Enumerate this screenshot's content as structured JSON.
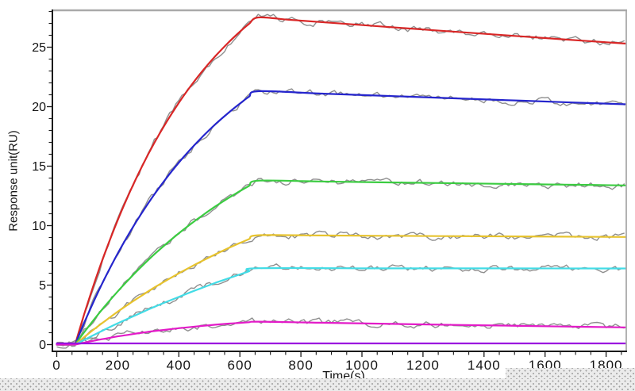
{
  "page": {
    "background_color": "#ffffff",
    "bottom_texture": "light-gray dotted desktop pattern partially covering x-axis labels"
  },
  "chart_data": {
    "type": "line",
    "title": "",
    "xlabel": "Time(s)",
    "ylabel": "Response unit(RU)",
    "xlim": [
      -14,
      1867
    ],
    "ylim": [
      -0.6,
      28.1
    ],
    "x_ticks": [
      0,
      200,
      400,
      600,
      800,
      1000,
      1200,
      1400,
      1600,
      1800
    ],
    "x_tick_labels": [
      "0",
      "200",
      "400",
      "600",
      "800",
      "1000",
      "1200",
      "1400",
      "1600",
      "1800"
    ],
    "x_minor_step": 50,
    "y_ticks": [
      0,
      5,
      10,
      15,
      20,
      25
    ],
    "y_tick_labels": [
      "0",
      "5",
      "10",
      "15",
      "20",
      "25"
    ],
    "y_minor_step": 1,
    "grid": false,
    "legend": "none",
    "axis_color": "#1a1a1a",
    "frame_color": "#a9a9a9",
    "noise_color": "#8f8f8f",
    "association_start_s": 60,
    "association_end_s": 660,
    "series": [
      {
        "name": "series-red",
        "color": "#d92626",
        "noise": true,
        "points": [
          [
            0,
            0
          ],
          [
            60,
            0
          ],
          [
            80,
            1.73
          ],
          [
            100,
            3.38
          ],
          [
            130,
            5.7
          ],
          [
            160,
            7.85
          ],
          [
            200,
            10.48
          ],
          [
            240,
            12.86
          ],
          [
            280,
            15.02
          ],
          [
            320,
            16.97
          ],
          [
            360,
            18.73
          ],
          [
            400,
            20.33
          ],
          [
            440,
            21.77
          ],
          [
            480,
            23.08
          ],
          [
            520,
            24.26
          ],
          [
            560,
            25.33
          ],
          [
            600,
            26.3
          ],
          [
            630,
            26.96
          ],
          [
            660,
            27.5
          ],
          [
            760,
            27.31
          ],
          [
            860,
            27.12
          ],
          [
            1060,
            26.75
          ],
          [
            1260,
            26.38
          ],
          [
            1460,
            26.02
          ],
          [
            1660,
            25.66
          ],
          [
            1866,
            25.3
          ]
        ]
      },
      {
        "name": "series-blue",
        "color": "#2525cd",
        "noise": true,
        "points": [
          [
            0,
            0
          ],
          [
            60,
            0
          ],
          [
            80,
            1.24
          ],
          [
            100,
            2.43
          ],
          [
            130,
            4.12
          ],
          [
            160,
            5.71
          ],
          [
            200,
            7.67
          ],
          [
            240,
            9.47
          ],
          [
            280,
            11.12
          ],
          [
            320,
            12.63
          ],
          [
            360,
            14.02
          ],
          [
            400,
            15.3
          ],
          [
            440,
            16.47
          ],
          [
            480,
            17.54
          ],
          [
            520,
            18.53
          ],
          [
            560,
            19.43
          ],
          [
            600,
            20.26
          ],
          [
            630,
            20.84
          ],
          [
            660,
            21.3
          ],
          [
            860,
            21.11
          ],
          [
            1060,
            20.93
          ],
          [
            1260,
            20.74
          ],
          [
            1460,
            20.56
          ],
          [
            1660,
            20.38
          ],
          [
            1866,
            20.2
          ]
        ]
      },
      {
        "name": "series-green",
        "color": "#3bcc41",
        "noise": true,
        "points": [
          [
            0,
            0
          ],
          [
            60,
            0
          ],
          [
            80,
            0.7
          ],
          [
            100,
            1.38
          ],
          [
            130,
            2.36
          ],
          [
            160,
            3.3
          ],
          [
            200,
            4.48
          ],
          [
            240,
            5.58
          ],
          [
            280,
            6.62
          ],
          [
            320,
            7.59
          ],
          [
            360,
            8.5
          ],
          [
            400,
            9.36
          ],
          [
            440,
            10.16
          ],
          [
            480,
            10.91
          ],
          [
            520,
            11.62
          ],
          [
            560,
            12.28
          ],
          [
            600,
            12.9
          ],
          [
            630,
            13.34
          ],
          [
            660,
            13.78
          ],
          [
            860,
            13.71
          ],
          [
            1060,
            13.64
          ],
          [
            1260,
            13.58
          ],
          [
            1460,
            13.51
          ],
          [
            1660,
            13.45
          ],
          [
            1866,
            13.38
          ]
        ]
      },
      {
        "name": "series-yellow",
        "color": "#e7c32e",
        "noise": true,
        "points": [
          [
            0,
            0
          ],
          [
            60,
            0
          ],
          [
            80,
            0.42
          ],
          [
            100,
            0.84
          ],
          [
            130,
            1.44
          ],
          [
            160,
            2.02
          ],
          [
            200,
            2.77
          ],
          [
            240,
            3.48
          ],
          [
            280,
            4.15
          ],
          [
            320,
            4.8
          ],
          [
            360,
            5.41
          ],
          [
            400,
            5.99
          ],
          [
            440,
            6.55
          ],
          [
            480,
            7.08
          ],
          [
            520,
            7.59
          ],
          [
            560,
            8.08
          ],
          [
            600,
            8.54
          ],
          [
            630,
            8.87
          ],
          [
            660,
            9.19
          ],
          [
            860,
            9.17
          ],
          [
            1060,
            9.15
          ],
          [
            1260,
            9.12
          ],
          [
            1460,
            9.1
          ],
          [
            1660,
            9.07
          ],
          [
            1866,
            9.05
          ]
        ]
      },
      {
        "name": "series-cyan",
        "color": "#43dce6",
        "noise": true,
        "points": [
          [
            0,
            0
          ],
          [
            60,
            0
          ],
          [
            80,
            0.27
          ],
          [
            100,
            0.53
          ],
          [
            130,
            0.92
          ],
          [
            160,
            1.3
          ],
          [
            200,
            1.79
          ],
          [
            240,
            2.26
          ],
          [
            280,
            2.72
          ],
          [
            320,
            3.17
          ],
          [
            360,
            3.6
          ],
          [
            400,
            4.01
          ],
          [
            440,
            4.42
          ],
          [
            480,
            4.81
          ],
          [
            520,
            5.19
          ],
          [
            560,
            5.55
          ],
          [
            600,
            5.9
          ],
          [
            630,
            6.16
          ],
          [
            660,
            6.42
          ],
          [
            1060,
            6.41
          ],
          [
            1460,
            6.41
          ],
          [
            1866,
            6.4
          ]
        ]
      },
      {
        "name": "series-magenta",
        "color": "#e31bc8",
        "noise": true,
        "points": [
          [
            0,
            0
          ],
          [
            60,
            0
          ],
          [
            80,
            0.11
          ],
          [
            100,
            0.22
          ],
          [
            130,
            0.37
          ],
          [
            160,
            0.51
          ],
          [
            200,
            0.69
          ],
          [
            240,
            0.85
          ],
          [
            280,
            1.0
          ],
          [
            320,
            1.14
          ],
          [
            360,
            1.26
          ],
          [
            400,
            1.38
          ],
          [
            440,
            1.48
          ],
          [
            480,
            1.58
          ],
          [
            520,
            1.67
          ],
          [
            560,
            1.76
          ],
          [
            600,
            1.83
          ],
          [
            630,
            1.88
          ],
          [
            660,
            1.93
          ],
          [
            860,
            1.84
          ],
          [
            1060,
            1.76
          ],
          [
            1260,
            1.67
          ],
          [
            1460,
            1.6
          ],
          [
            1660,
            1.52
          ],
          [
            1866,
            1.45
          ]
        ]
      },
      {
        "name": "series-baseline",
        "color": "#9b11df",
        "noise": false,
        "points": [
          [
            0,
            0.1
          ],
          [
            1866,
            0.1
          ]
        ]
      }
    ]
  }
}
